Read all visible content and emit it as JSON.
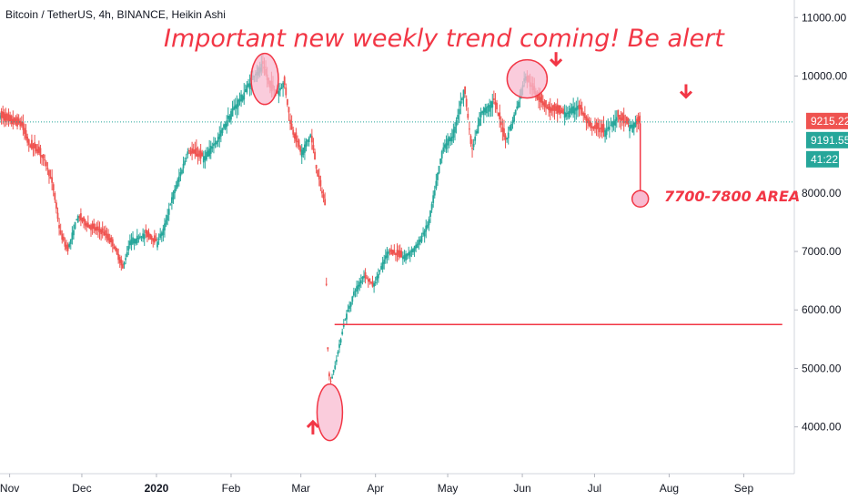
{
  "symbol_title": "Bitcoin / TetherUS, 4h, BINANCE, Heikin Ashi",
  "headline": "Important new weekly trend coming! Be alert",
  "target_note": "7700-7800 AREA",
  "colors": {
    "up": "#26a69a",
    "down": "#ef5350",
    "annotation": "#f23645",
    "highlight_fill": "#f8bbd0",
    "price_line": "#26a69a",
    "badge_red": "#ef5350",
    "badge_teal": "#26a69a"
  },
  "price_badges": [
    {
      "label": "9215.22",
      "value": 9215.22,
      "color": "#ef5350"
    },
    {
      "label": "9191.55",
      "value": 9191.55,
      "color": "#26a69a"
    },
    {
      "label": "41:22",
      "value": 8880,
      "color": "#26a69a"
    }
  ],
  "chart_data": {
    "type": "candlestick",
    "ylim": [
      3200,
      11300
    ],
    "y_ticks": [
      {
        "label": "4000.00",
        "value": 4000
      },
      {
        "label": "5000.00",
        "value": 5000
      },
      {
        "label": "6000.00",
        "value": 6000
      },
      {
        "label": "7000.00",
        "value": 7000
      },
      {
        "label": "8000.00",
        "value": 8000
      },
      {
        "label": "10000.00",
        "value": 10000
      },
      {
        "label": "11000.00",
        "value": 11000
      }
    ],
    "x_start": "2019-10-28",
    "x_end": "2020-09-22",
    "x_ticks": [
      {
        "label": "Nov",
        "date": "2019-11-01",
        "strong": false
      },
      {
        "label": "Dec",
        "date": "2019-12-01",
        "strong": false
      },
      {
        "label": "2020",
        "date": "2020-01-01",
        "strong": true
      },
      {
        "label": "Feb",
        "date": "2020-02-01",
        "strong": false
      },
      {
        "label": "Mar",
        "date": "2020-03-01",
        "strong": false
      },
      {
        "label": "Apr",
        "date": "2020-04-01",
        "strong": false
      },
      {
        "label": "May",
        "date": "2020-05-01",
        "strong": false
      },
      {
        "label": "Jun",
        "date": "2020-06-01",
        "strong": false
      },
      {
        "label": "Jul",
        "date": "2020-07-01",
        "strong": false
      },
      {
        "label": "Aug",
        "date": "2020-08-01",
        "strong": false
      },
      {
        "label": "Sep",
        "date": "2020-09-01",
        "strong": false
      }
    ],
    "price_path": [
      [
        "2019-10-28",
        9300
      ],
      [
        "2019-11-01",
        9200
      ],
      [
        "2019-11-06",
        9150
      ],
      [
        "2019-11-09",
        8800
      ],
      [
        "2019-11-13",
        8700
      ],
      [
        "2019-11-16",
        8500
      ],
      [
        "2019-11-19",
        8100
      ],
      [
        "2019-11-22",
        7300
      ],
      [
        "2019-11-25",
        7000
      ],
      [
        "2019-11-29",
        7600
      ],
      [
        "2019-12-04",
        7400
      ],
      [
        "2019-12-10",
        7300
      ],
      [
        "2019-12-14",
        7100
      ],
      [
        "2019-12-18",
        6700
      ],
      [
        "2019-12-21",
        7200
      ],
      [
        "2019-12-27",
        7300
      ],
      [
        "2020-01-01",
        7150
      ],
      [
        "2020-01-04",
        7400
      ],
      [
        "2020-01-08",
        8000
      ],
      [
        "2020-01-14",
        8700
      ],
      [
        "2020-01-20",
        8600
      ],
      [
        "2020-01-26",
        8900
      ],
      [
        "2020-02-01",
        9400
      ],
      [
        "2020-02-06",
        9700
      ],
      [
        "2020-02-10",
        10000
      ],
      [
        "2020-02-14",
        10200
      ],
      [
        "2020-02-17",
        9800
      ],
      [
        "2020-02-20",
        9700
      ],
      [
        "2020-02-23",
        9900
      ],
      [
        "2020-02-26",
        9100
      ],
      [
        "2020-03-01",
        8700
      ],
      [
        "2020-03-05",
        9000
      ],
      [
        "2020-03-08",
        8300
      ],
      [
        "2020-03-11",
        7800
      ],
      [
        "2020-03-12",
        5500
      ],
      [
        "2020-03-13",
        4700
      ],
      [
        "2020-03-16",
        5200
      ],
      [
        "2020-03-19",
        5800
      ],
      [
        "2020-03-23",
        6300
      ],
      [
        "2020-03-27",
        6600
      ],
      [
        "2020-03-31",
        6400
      ],
      [
        "2020-04-06",
        7000
      ],
      [
        "2020-04-12",
        6900
      ],
      [
        "2020-04-18",
        7100
      ],
      [
        "2020-04-23",
        7500
      ],
      [
        "2020-04-29",
        8800
      ],
      [
        "2020-05-03",
        9000
      ],
      [
        "2020-05-08",
        9800
      ],
      [
        "2020-05-11",
        8700
      ],
      [
        "2020-05-15",
        9400
      ],
      [
        "2020-05-20",
        9600
      ],
      [
        "2020-05-25",
        8900
      ],
      [
        "2020-05-30",
        9500
      ],
      [
        "2020-06-02",
        10000
      ],
      [
        "2020-06-06",
        9700
      ],
      [
        "2020-06-12",
        9400
      ],
      [
        "2020-06-18",
        9350
      ],
      [
        "2020-06-24",
        9500
      ],
      [
        "2020-06-29",
        9100
      ],
      [
        "2020-07-05",
        9050
      ],
      [
        "2020-07-10",
        9300
      ],
      [
        "2020-07-15",
        9150
      ],
      [
        "2020-07-18",
        9200
      ],
      [
        "2020-07-20",
        9191.55
      ]
    ],
    "annotations": {
      "current_price_line": 9215.22,
      "support_line": {
        "value": 5750,
        "from": "2020-03-15",
        "to": "2020-09-17"
      },
      "projection_line": {
        "date": "2020-07-20",
        "from": 9191.55,
        "to": 7900
      },
      "target_circle": {
        "date": "2020-07-20",
        "value": 7900
      },
      "highlight_ellipses": [
        {
          "date": "2020-02-15",
          "value": 9950
        },
        {
          "date": "2020-06-03",
          "value": 9950
        },
        {
          "date": "2020-03-13",
          "value": 4250
        }
      ],
      "arrows": [
        {
          "direction": "down",
          "date": "2020-06-15",
          "value": 10300
        },
        {
          "direction": "down",
          "date": "2020-08-08",
          "value": 9750
        },
        {
          "direction": "up",
          "date": "2020-03-06",
          "value": 3980
        }
      ]
    }
  }
}
